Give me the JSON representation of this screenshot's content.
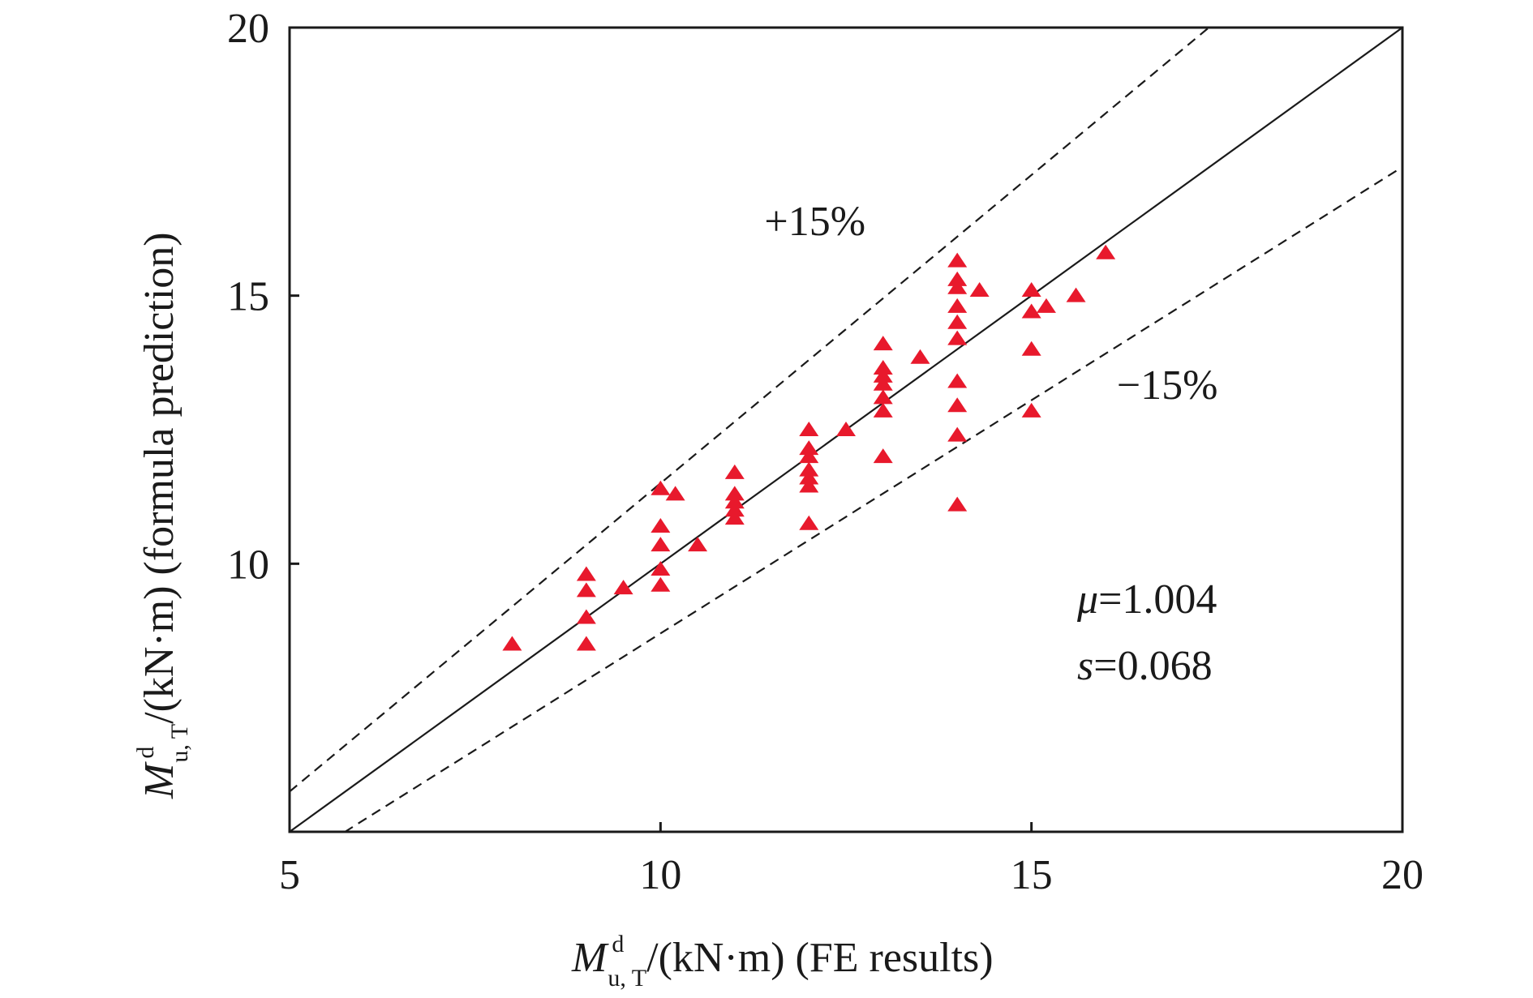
{
  "chart_data": {
    "type": "scatter",
    "xlabel": {
      "symbol": "M",
      "sup": "d",
      "sub": "u, T",
      "rest": "/(kN·m) (FE results)"
    },
    "ylabel": {
      "symbol": "M",
      "sup": "d",
      "sub": "u, T",
      "rest": "/(kN·m) (formula prediction)"
    },
    "xlim": [
      5,
      20
    ],
    "ylim": [
      5,
      20
    ],
    "x_ticks": [
      5,
      10,
      15,
      20
    ],
    "y_ticks": [
      10,
      15,
      20
    ],
    "grid": false,
    "marker": "triangle",
    "marker_color": "#e8192c",
    "reference_lines": [
      {
        "slope": 1.0,
        "style": "solid"
      },
      {
        "slope": 1.15,
        "style": "dashed",
        "label": "+15%"
      },
      {
        "slope": 0.87,
        "style": "dashed",
        "label": "−15%"
      }
    ],
    "stats": {
      "mu_symbol": "μ",
      "mu_value": "=1.004",
      "s_symbol": "s",
      "s_value": "=0.068"
    },
    "points": [
      [
        8,
        8.5
      ],
      [
        9,
        9.8
      ],
      [
        9,
        9.5
      ],
      [
        9,
        9.0
      ],
      [
        9,
        8.5
      ],
      [
        9.5,
        9.55
      ],
      [
        10,
        11.4
      ],
      [
        10,
        10.7
      ],
      [
        10,
        10.35
      ],
      [
        10,
        9.9
      ],
      [
        10,
        9.6
      ],
      [
        10.2,
        11.3
      ],
      [
        10.5,
        10.35
      ],
      [
        11,
        11.7
      ],
      [
        11,
        11.3
      ],
      [
        11,
        11.15
      ],
      [
        11,
        11.0
      ],
      [
        11,
        10.85
      ],
      [
        12,
        12.5
      ],
      [
        12,
        12.15
      ],
      [
        12,
        12.0
      ],
      [
        12,
        11.75
      ],
      [
        12,
        11.6
      ],
      [
        12,
        11.45
      ],
      [
        12,
        10.75
      ],
      [
        12.5,
        12.5
      ],
      [
        13,
        14.1
      ],
      [
        13,
        13.65
      ],
      [
        13,
        13.5
      ],
      [
        13,
        13.35
      ],
      [
        13,
        13.1
      ],
      [
        13,
        12.85
      ],
      [
        13,
        12.0
      ],
      [
        13.5,
        13.85
      ],
      [
        14,
        15.65
      ],
      [
        14,
        15.3
      ],
      [
        14,
        15.15
      ],
      [
        14,
        14.8
      ],
      [
        14,
        14.5
      ],
      [
        14,
        14.2
      ],
      [
        14,
        13.4
      ],
      [
        14,
        12.95
      ],
      [
        14,
        12.4
      ],
      [
        14,
        11.1
      ],
      [
        14.3,
        15.1
      ],
      [
        15,
        15.1
      ],
      [
        15,
        14.7
      ],
      [
        15,
        14.0
      ],
      [
        15,
        12.85
      ],
      [
        15.2,
        14.8
      ],
      [
        15.6,
        15.0
      ],
      [
        16,
        15.8
      ]
    ]
  }
}
